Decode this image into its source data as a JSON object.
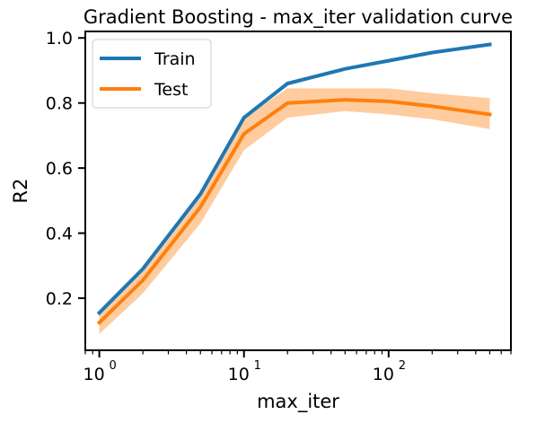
{
  "chart_data": {
    "type": "line",
    "title": "Gradient Boosting - max_iter validation curve",
    "xlabel": "max_iter",
    "ylabel": "R2",
    "xscale": "log",
    "x": [
      1,
      2,
      5,
      10,
      20,
      50,
      100,
      200,
      500
    ],
    "xlim": [
      0.8,
      700
    ],
    "ylim": [
      0.04,
      1.02
    ],
    "xticks": [
      1,
      10,
      100
    ],
    "xtick_labels": [
      {
        "base": "10",
        "exp": "0"
      },
      {
        "base": "10",
        "exp": "1"
      },
      {
        "base": "10",
        "exp": "2"
      }
    ],
    "yticks": [
      0.2,
      0.4,
      0.6,
      0.8,
      1.0
    ],
    "ytick_labels": [
      "0.2",
      "0.4",
      "0.6",
      "0.8",
      "1.0"
    ],
    "grid": false,
    "legend_position": "top-left",
    "series": [
      {
        "name": "Train",
        "color": "#1f77b4",
        "values": [
          0.155,
          0.29,
          0.52,
          0.755,
          0.86,
          0.905,
          0.93,
          0.955,
          0.98
        ],
        "band_lower": [
          0.153,
          0.288,
          0.518,
          0.753,
          0.858,
          0.903,
          0.928,
          0.953,
          0.978
        ],
        "band_upper": [
          0.157,
          0.292,
          0.522,
          0.757,
          0.862,
          0.907,
          0.932,
          0.957,
          0.982
        ]
      },
      {
        "name": "Test",
        "color": "#ff7f0e",
        "values": [
          0.125,
          0.255,
          0.48,
          0.705,
          0.8,
          0.81,
          0.805,
          0.79,
          0.765
        ],
        "band_lower": [
          0.09,
          0.215,
          0.43,
          0.655,
          0.755,
          0.775,
          0.765,
          0.75,
          0.72
        ],
        "band_upper": [
          0.16,
          0.295,
          0.53,
          0.755,
          0.845,
          0.845,
          0.845,
          0.83,
          0.815
        ]
      }
    ]
  }
}
